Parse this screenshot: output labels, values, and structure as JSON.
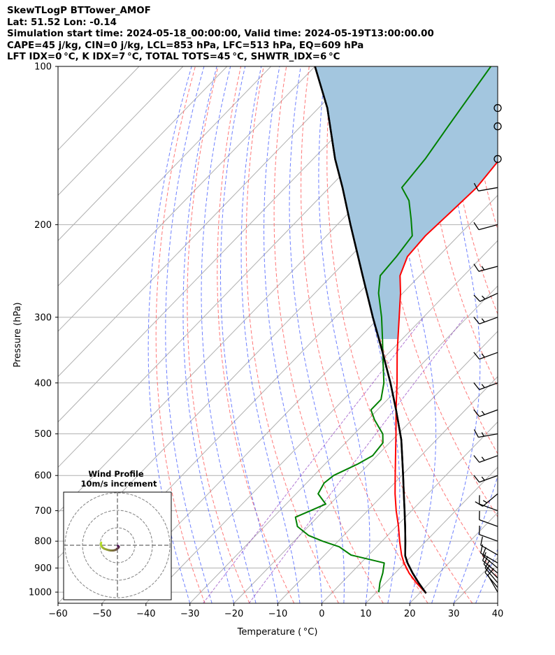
{
  "header": {
    "line1": "SkewTLogP BTTower_AMOF",
    "line2": "Lat: 51.52   Lon: -0.14",
    "line3": "Simulation start time: 2024-05-18_00:00:00, Valid time: 2024-05-19T13:00:00.00",
    "line4": "CAPE=45 j/kg, CIN=0 j/kg, LCL=853 hPa, LFC=513 hPa, EQ=609 hPa",
    "line5": "LFT IDX=0 °C, K IDX=7 °C, TOTAL TOTS=45 °C, SHWTR_IDX=6 °C"
  },
  "colors": {
    "temperature": "#ff0000",
    "dewpoint": "#008000",
    "parcel": "#000000",
    "cape_fill": "#a3c6df",
    "dry_adiabat": "#ff6060",
    "moist_adiabat": "#4a60ff",
    "isotherm": "#b0b0b0",
    "mixing_ratio": "#9040c0"
  },
  "chart_data": {
    "type": "line",
    "subtype": "skewt-logp",
    "xlabel": "Temperature ( °C)",
    "ylabel": "Pressure (hPa)",
    "xlim": [
      -60,
      40
    ],
    "ylim": [
      1050,
      100
    ],
    "y_scale": "log",
    "grid": true,
    "x_ticks": [
      "−60",
      "−50",
      "−40",
      "−30",
      "−20",
      "−10",
      "0",
      "10",
      "20",
      "30",
      "40"
    ],
    "x_tick_values": [
      -60,
      -50,
      -40,
      -30,
      -20,
      -10,
      0,
      10,
      20,
      30,
      40
    ],
    "y_ticks": [
      "1000",
      "900",
      "800",
      "700",
      "600",
      "500",
      "400",
      "300",
      "200",
      "100"
    ],
    "y_tick_values": [
      1000,
      900,
      800,
      700,
      600,
      500,
      400,
      300,
      200,
      100
    ],
    "series": [
      {
        "key": "temperature",
        "pressure": [
          1005,
          960,
          920,
          880,
          850,
          800,
          750,
          700,
          650,
          600,
          550,
          500,
          450,
          400,
          350,
          300,
          270,
          250,
          230,
          210,
          190,
          170,
          150,
          130,
          120,
          110,
          100
        ],
        "values": [
          21.5,
          17,
          13.2,
          9.8,
          7.5,
          4.0,
          0.5,
          -3.5,
          -7.5,
          -11.5,
          -15.8,
          -20.5,
          -25.8,
          -31.5,
          -38.2,
          -45.5,
          -50.5,
          -54.5,
          -57,
          -57.5,
          -57,
          -56.5,
          -57.5,
          -59.5,
          -61,
          -63,
          -65.5
        ]
      },
      {
        "key": "dewpoint",
        "pressure": [
          1000,
          960,
          920,
          880,
          850,
          820,
          800,
          780,
          750,
          720,
          700,
          680,
          650,
          620,
          600,
          570,
          550,
          520,
          500,
          470,
          450,
          430,
          400,
          360,
          330,
          300,
          270,
          250,
          230,
          210,
          195,
          180,
          170,
          150,
          130,
          100
        ],
        "values": [
          10.5,
          8.7,
          7.2,
          5.3,
          -4,
          -8.5,
          -13.5,
          -18,
          -22.5,
          -25,
          -23,
          -21,
          -25,
          -26,
          -25.5,
          -22.5,
          -21,
          -21.5,
          -23.5,
          -28.5,
          -31.5,
          -31.5,
          -34.5,
          -40,
          -44.5,
          -49.5,
          -55.5,
          -59,
          -59.5,
          -60.5,
          -64.5,
          -69,
          -73.5,
          -74.5,
          -76.5,
          -80
        ]
      },
      {
        "key": "parcel",
        "pressure": [
          1005,
          960,
          920,
          880,
          853,
          800,
          750,
          700,
          650,
          600,
          550,
          513,
          450,
          400,
          350,
          300,
          250,
          200,
          170,
          150,
          120,
          100
        ],
        "values": [
          21.5,
          17.5,
          14,
          10.6,
          8.5,
          5.3,
          2.0,
          -1.6,
          -5.5,
          -9.7,
          -14.3,
          -18,
          -25.8,
          -33,
          -41.5,
          -51.5,
          -63,
          -77,
          -87,
          -95,
          -108,
          -120
        ]
      }
    ],
    "cape_region": {
      "from_pressure": 330,
      "to_pressure": 100
    },
    "hodograph": {
      "title": "Wind Profile",
      "subtitle": "10m/s increment",
      "u": [
        0.3,
        0.7,
        0.8,
        0.5,
        -0.2,
        -0.8,
        -1.5,
        -2.5,
        -3.8,
        -5,
        -6,
        -7.5,
        -8.5,
        -9.2,
        -9.5,
        -9.3
      ],
      "v": [
        -0.4,
        -0.7,
        -1.0,
        -1.5,
        -2.0,
        -2.5,
        -2.8,
        -3.0,
        -3.0,
        -2.8,
        -2.5,
        -2.0,
        -1.3,
        -0.5,
        0.5,
        1.5
      ],
      "rings": [
        10,
        20,
        30
      ]
    },
    "wind_barbs": {
      "pressure": [
        1000,
        980,
        960,
        940,
        920,
        900,
        880,
        850,
        800,
        750,
        700,
        650,
        600,
        550,
        500,
        450,
        400,
        350,
        300,
        270,
        240,
        200,
        170,
        150,
        130,
        120
      ],
      "direction_deg": [
        330,
        320,
        320,
        315,
        310,
        310,
        300,
        300,
        290,
        290,
        290,
        230,
        250,
        250,
        260,
        250,
        250,
        250,
        250,
        245,
        255,
        255,
        260,
        0,
        0,
        0
      ],
      "speed_kt": [
        10,
        10,
        10,
        10,
        10,
        10,
        10,
        10,
        10,
        10,
        10,
        15,
        15,
        15,
        15,
        15,
        15,
        15,
        15,
        15,
        15,
        10,
        10,
        0,
        0,
        0
      ]
    }
  }
}
